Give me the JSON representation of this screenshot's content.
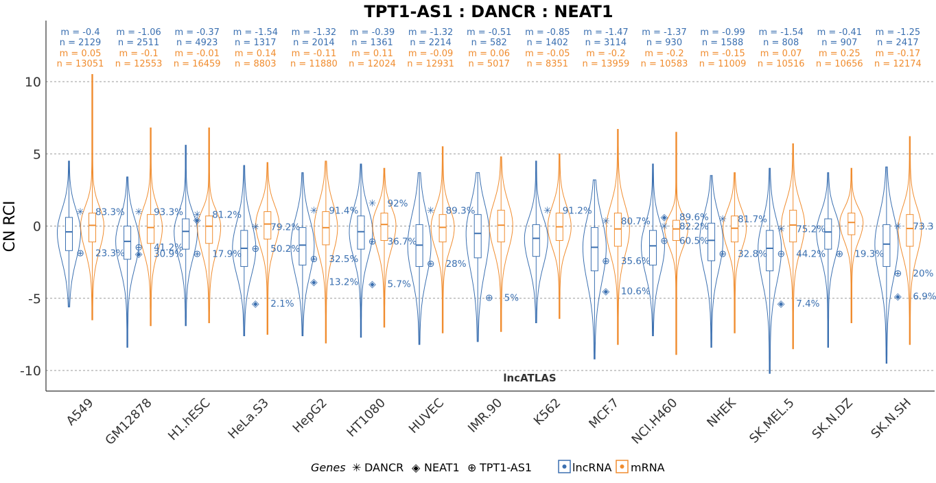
{
  "chart_data": {
    "type": "violin",
    "title": "TPT1-AS1 : DANCR : NEAT1",
    "ylabel": "CN RCI",
    "xlabel": "",
    "ylim": [
      -11.5,
      12.7
    ],
    "yticks": [
      10,
      5,
      0,
      -5,
      -10
    ],
    "grid": "horizontal-dashed",
    "watermark": "lncATLAS",
    "colors": {
      "lncRNA": "#3a6fb0",
      "mRNA": "#f08c2e"
    },
    "categories": [
      "A549",
      "GM12878",
      "H1.hESC",
      "HeLa.S3",
      "HepG2",
      "HT1080",
      "HUVEC",
      "IMR.90",
      "K562",
      "MCF.7",
      "NCI.H460",
      "NHEK",
      "SK.MEL.5",
      "SK.N.DZ",
      "SK.N.SH"
    ],
    "stats": {
      "lncRNA_m": [
        "m = -0.4",
        "m = -1.06",
        "m = -0.37",
        "m = -1.54",
        "m = -1.32",
        "m = -0.39",
        "m = -1.32",
        "m = -0.51",
        "m = -0.85",
        "m = -1.47",
        "m = -1.37",
        "m = -0.99",
        "m = -1.54",
        "m = -0.41",
        "m = -1.25"
      ],
      "lncRNA_n": [
        "n = 2129",
        "n = 2511",
        "n = 4923",
        "n = 1317",
        "n = 2014",
        "n = 1361",
        "n = 2214",
        "n = 582",
        "n = 1402",
        "n = 3114",
        "n = 930",
        "n = 1588",
        "n = 808",
        "n = 907",
        "n = 2417"
      ],
      "mRNA_m": [
        "m = 0.05",
        "m = -0.1",
        "m = -0.01",
        "m = 0.14",
        "m = -0.11",
        "m = 0.11",
        "m = -0.09",
        "m = 0.06",
        "m = -0.05",
        "m = -0.2",
        "m = -0.2",
        "m = -0.15",
        "m = 0.07",
        "m = 0.25",
        "m = -0.17"
      ],
      "mRNA_n": [
        "n = 13051",
        "n = 12553",
        "n = 16459",
        "n = 8803",
        "n = 11880",
        "n = 12024",
        "n = 12931",
        "n = 5017",
        "n = 8351",
        "n = 13959",
        "n = 10583",
        "n = 11009",
        "n = 10516",
        "n = 10656",
        "n = 12174"
      ]
    },
    "series": [
      {
        "name": "lncRNA",
        "median": [
          -0.4,
          -1.06,
          -0.37,
          -1.54,
          -1.32,
          -0.39,
          -1.32,
          -0.51,
          -0.85,
          -1.47,
          -1.37,
          -0.99,
          -1.54,
          -0.41,
          -1.25
        ],
        "q1": [
          -1.7,
          -2.3,
          -1.6,
          -2.8,
          -2.7,
          -1.6,
          -2.8,
          -2.2,
          -2.1,
          -3.1,
          -2.7,
          -2.4,
          -3.1,
          -1.6,
          -2.8
        ],
        "q3": [
          0.6,
          0.0,
          0.5,
          -0.3,
          -0.1,
          0.7,
          0.1,
          0.8,
          0.1,
          -0.1,
          -0.3,
          0.2,
          -0.3,
          0.5,
          0.1
        ],
        "min": [
          -5.6,
          -8.4,
          -6.9,
          -7.6,
          -7.6,
          -7.7,
          -8.2,
          -8.0,
          -6.7,
          -9.2,
          -7.6,
          -8.4,
          -10.2,
          -8.4,
          -9.5
        ],
        "max": [
          4.5,
          3.4,
          5.6,
          4.2,
          3.7,
          4.3,
          3.7,
          3.7,
          4.5,
          3.2,
          4.3,
          3.5,
          4.0,
          3.7,
          4.1
        ]
      },
      {
        "name": "mRNA",
        "median": [
          0.05,
          -0.1,
          -0.01,
          0.14,
          -0.11,
          0.11,
          -0.09,
          0.06,
          -0.05,
          -0.2,
          -0.2,
          -0.15,
          0.07,
          0.25,
          -0.17
        ],
        "q1": [
          -1.1,
          -1.2,
          -1.2,
          -0.9,
          -1.3,
          -1.0,
          -1.1,
          -1.1,
          -1.0,
          -1.4,
          -1.0,
          -1.1,
          -1.1,
          -0.6,
          -1.4
        ],
        "q3": [
          0.9,
          0.8,
          0.7,
          1.0,
          1.0,
          0.9,
          0.8,
          1.1,
          0.9,
          0.9,
          0.4,
          0.7,
          1.1,
          0.9,
          0.8
        ],
        "min": [
          -6.5,
          -6.9,
          -6.7,
          -7.5,
          -8.1,
          -7.0,
          -7.4,
          -7.3,
          -6.4,
          -8.2,
          -8.9,
          -7.4,
          -8.5,
          -6.7,
          -8.2
        ],
        "max": [
          10.5,
          6.8,
          6.8,
          4.4,
          4.5,
          4.0,
          5.5,
          4.8,
          5.0,
          6.7,
          6.5,
          3.7,
          5.7,
          4.0,
          6.2
        ]
      }
    ],
    "genes": [
      {
        "name": "DANCR",
        "symbol": "✳",
        "values": [
          1.0,
          1.0,
          0.8,
          -0.05,
          1.1,
          1.6,
          1.1,
          null,
          1.1,
          0.35,
          0.0,
          0.5,
          -0.2,
          null,
          0.0
        ],
        "percent_labels": [
          "83.3%",
          "93.3%",
          "81.2%",
          "79.2%",
          "91.4%",
          "92%",
          "89.3%",
          "",
          "91.2%",
          "80.7%",
          "82.2%",
          "81.7%",
          "75.2%",
          "",
          "73.3"
        ]
      },
      {
        "name": "NEAT1",
        "symbol": "◈",
        "values": [
          null,
          -1.9,
          0.45,
          -5.35,
          -3.85,
          -4.0,
          null,
          null,
          null,
          -4.5,
          0.65,
          null,
          -5.35,
          null,
          -4.85
        ],
        "percent_labels": [
          "",
          "30.9%",
          "",
          "2.1%",
          "13.2%",
          "5.7%",
          "",
          "",
          "",
          "10.6%",
          "89.6%",
          "",
          "7.4%",
          "",
          "6.9%"
        ]
      },
      {
        "name": "TPT1-AS1",
        "symbol": "⊕",
        "values": [
          -1.85,
          -1.45,
          -1.9,
          -1.55,
          -2.25,
          -1.05,
          -2.6,
          -4.95,
          null,
          -2.4,
          -1.0,
          -1.9,
          -1.9,
          -1.9,
          -3.25
        ],
        "percent_labels": [
          "23.3%",
          "41.2%",
          "17.9%",
          "50.2%",
          "32.5%",
          "36.7%",
          "28%",
          "5%",
          "",
          "35.6%",
          "60.5%",
          "32.8%",
          "44.2%",
          "19.3%",
          "20%"
        ]
      }
    ]
  },
  "legend": {
    "genes_title": "Genes",
    "genes": [
      "DANCR",
      "NEAT1",
      "TPT1-AS1"
    ],
    "types": [
      "lncRNA",
      "mRNA"
    ]
  }
}
